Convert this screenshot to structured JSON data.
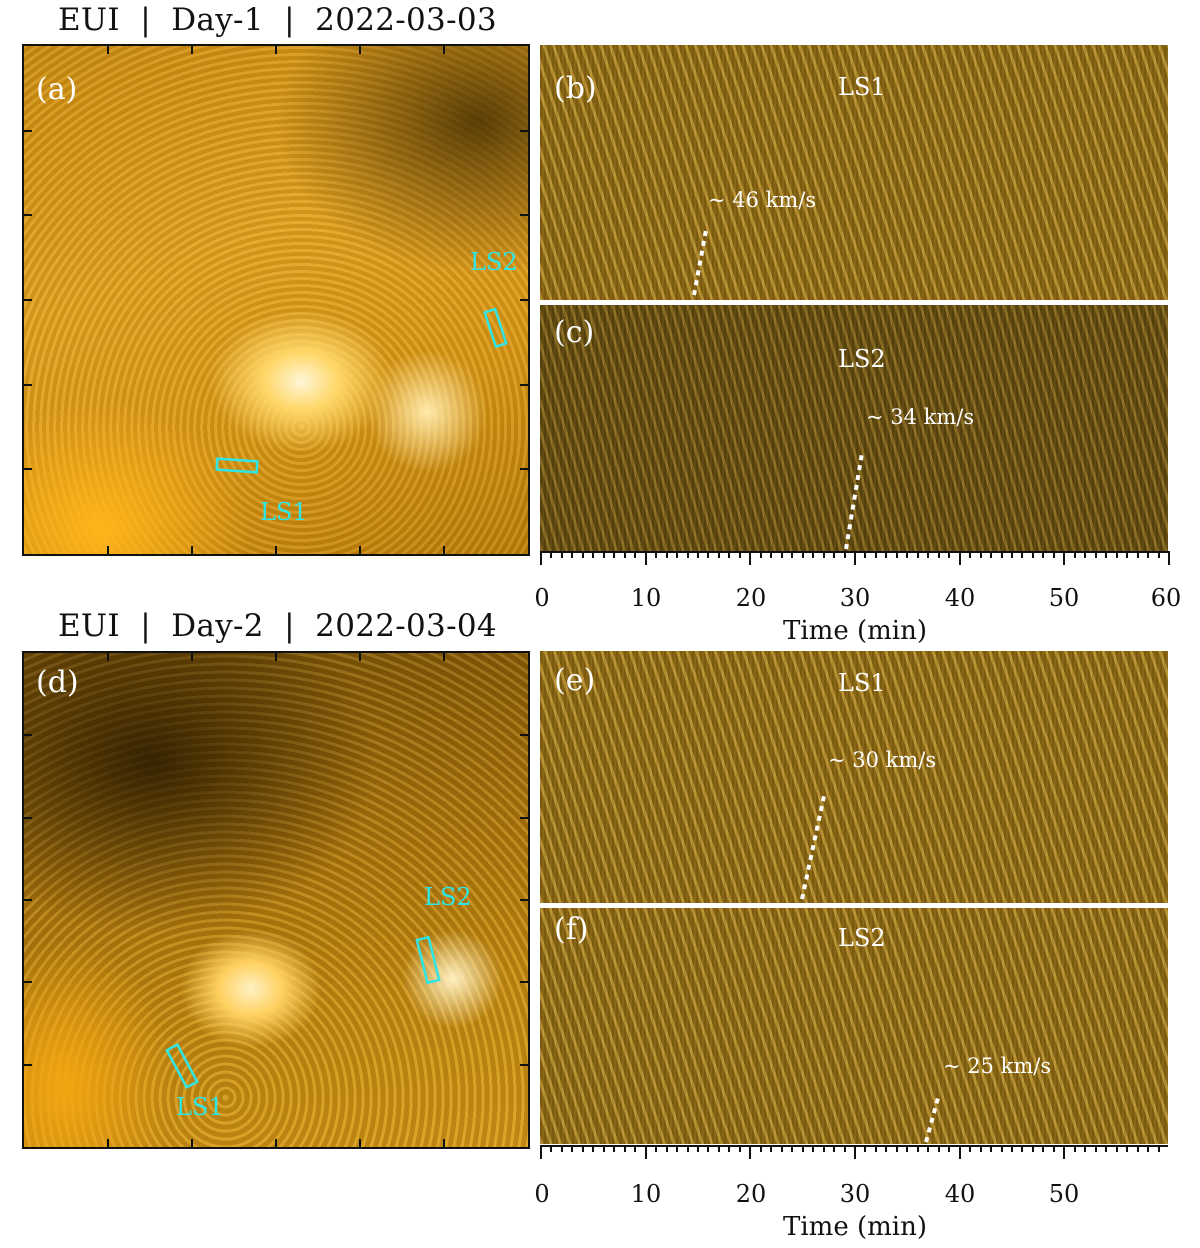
{
  "figure": {
    "row1_title": "EUI  |  Day-1  |  2022-03-03",
    "row2_title": "EUI  |  Day-2  |  2022-03-04",
    "colors": {
      "roi": "#2ee6e6",
      "background": "#ffffff",
      "label": "#ffffff"
    },
    "panels": {
      "a": {
        "label": "(a)",
        "ls1": "LS1",
        "ls2": "LS2"
      },
      "b": {
        "label": "(b)",
        "slit": "LS1",
        "speed": "~ 46 km/s"
      },
      "c": {
        "label": "(c)",
        "slit": "LS2",
        "speed": "~ 34 km/s"
      },
      "d": {
        "label": "(d)",
        "ls1": "LS1",
        "ls2": "LS2"
      },
      "e": {
        "label": "(e)",
        "slit": "LS1",
        "speed": "~ 30 km/s"
      },
      "f": {
        "label": "(f)",
        "slit": "LS2",
        "speed": "~ 25 km/s"
      }
    },
    "axis_top": {
      "ticks": [
        "0",
        "10",
        "20",
        "30",
        "40",
        "50",
        "60"
      ],
      "title": "Time (min)"
    },
    "axis_bottom": {
      "ticks": [
        "0",
        "10",
        "20",
        "30",
        "40",
        "50"
      ],
      "title": "Time (min)"
    }
  },
  "chart_data": [
    {
      "type": "heatmap",
      "panel": "b",
      "slit": "LS1",
      "xlabel": "Time (min)",
      "xlim": [
        0,
        60
      ],
      "speed_fit": {
        "label": "~ 46 km/s",
        "t_min": [
          14.5,
          15.7
        ]
      }
    },
    {
      "type": "heatmap",
      "panel": "c",
      "slit": "LS2",
      "xlabel": "Time (min)",
      "xlim": [
        0,
        60
      ],
      "speed_fit": {
        "label": "~ 34 km/s",
        "t_min": [
          29.3,
          30.8
        ]
      }
    },
    {
      "type": "heatmap",
      "panel": "e",
      "slit": "LS1",
      "xlabel": "Time (min)",
      "xlim": [
        0,
        60
      ],
      "speed_fit": {
        "label": "~ 30 km/s",
        "t_min": [
          24.8,
          27.0
        ]
      }
    },
    {
      "type": "heatmap",
      "panel": "f",
      "slit": "LS2",
      "xlabel": "Time (min)",
      "xlim": [
        0,
        59
      ],
      "speed_fit": {
        "label": "~ 25 km/s",
        "t_min": [
          36.8,
          38.0
        ]
      }
    }
  ]
}
